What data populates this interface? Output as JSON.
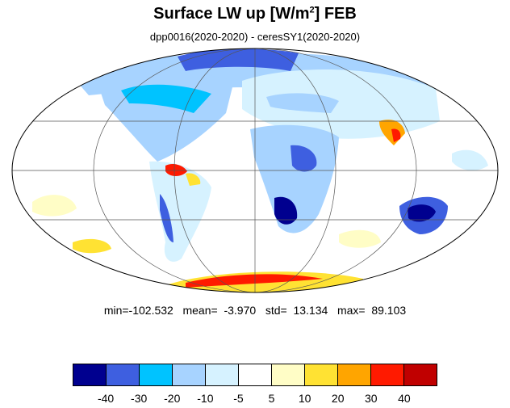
{
  "title": {
    "main": "Surface LW up [W/m",
    "sup": "2",
    "suffix": "]  FEB"
  },
  "subtitle": "dpp0016(2020-2020) - ceresSY1(2020-2020)",
  "stats": "min=-102.532   mean=  -3.970   std=  13.134   max=  89.103",
  "colorbar": {
    "colors": [
      "#00008f",
      "#3e5fe0",
      "#00c3ff",
      "#a7d3ff",
      "#d6f2ff",
      "#ffffff",
      "#fffdc6",
      "#ffe233",
      "#ffa500",
      "#ff1a00",
      "#c00000"
    ],
    "labels": [
      "-40",
      "-30",
      "-20",
      "-10",
      "-5",
      "5",
      "10",
      "20",
      "30",
      "40"
    ]
  }
}
